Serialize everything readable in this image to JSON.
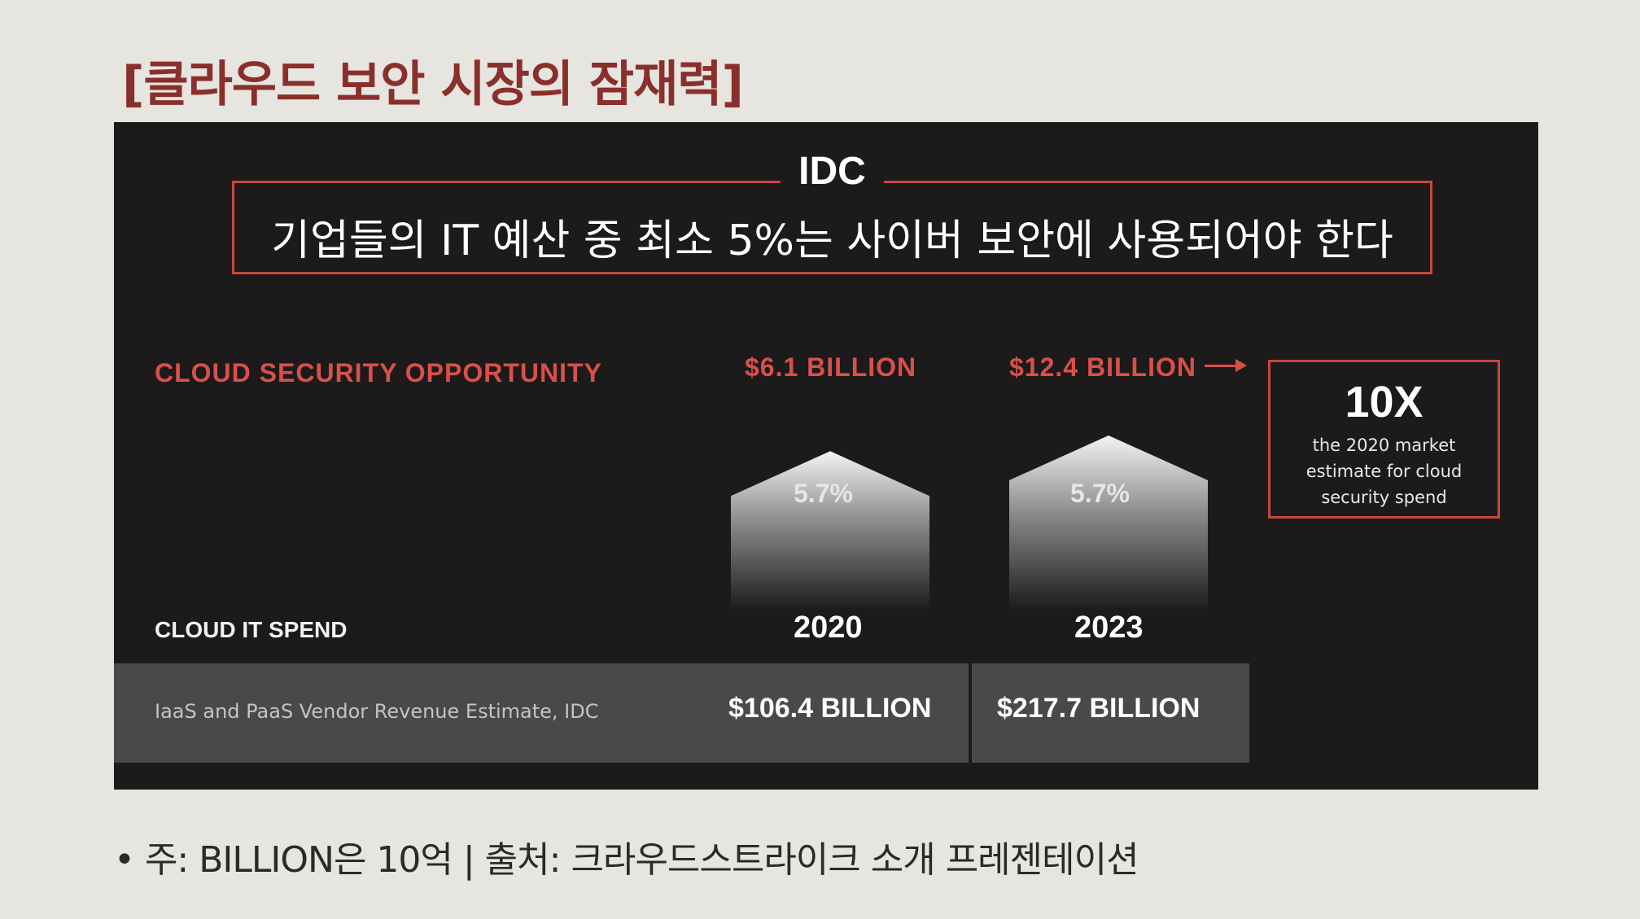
{
  "page_title": "[클라우드 보안 시장의 잠재력]",
  "idc": {
    "label": "IDC",
    "quote": "기업들의 IT 예산 중 최소 5%는 사이버 보안에 사용되어야 한다"
  },
  "opportunity_title": "CLOUD SECURITY OPPORTUNITY",
  "multiplier": {
    "value": "10X",
    "description": "the 2020 market estimate for cloud security spend"
  },
  "spend": {
    "title": "CLOUD IT SPEND",
    "source": "IaaS and PaaS Vendor Revenue Estimate, IDC"
  },
  "footnote": "• 주: BILLION은 10억 | 출처: 크라우드스트라이크 소개 프레젠테이션",
  "colors": {
    "accent": "#d9504a",
    "panel": "#1c1a1b",
    "row": "#4a4849"
  },
  "chart_data": {
    "type": "bar",
    "categories": [
      "2020",
      "2023"
    ],
    "series": [
      {
        "name": "CLOUD SECURITY OPPORTUNITY",
        "values": [
          6.1,
          12.4
        ],
        "labels": [
          "$6.1 BILLION",
          "$12.4 BILLION"
        ]
      },
      {
        "name": "CLOUD IT SPEND",
        "values": [
          106.4,
          217.7
        ],
        "labels": [
          "$106.4 BILLION",
          "$217.7 BILLION"
        ]
      }
    ],
    "share_labels": [
      "5.7%",
      "5.7%"
    ],
    "title": "CLOUD SECURITY OPPORTUNITY",
    "xlabel": "",
    "ylabel": ""
  }
}
